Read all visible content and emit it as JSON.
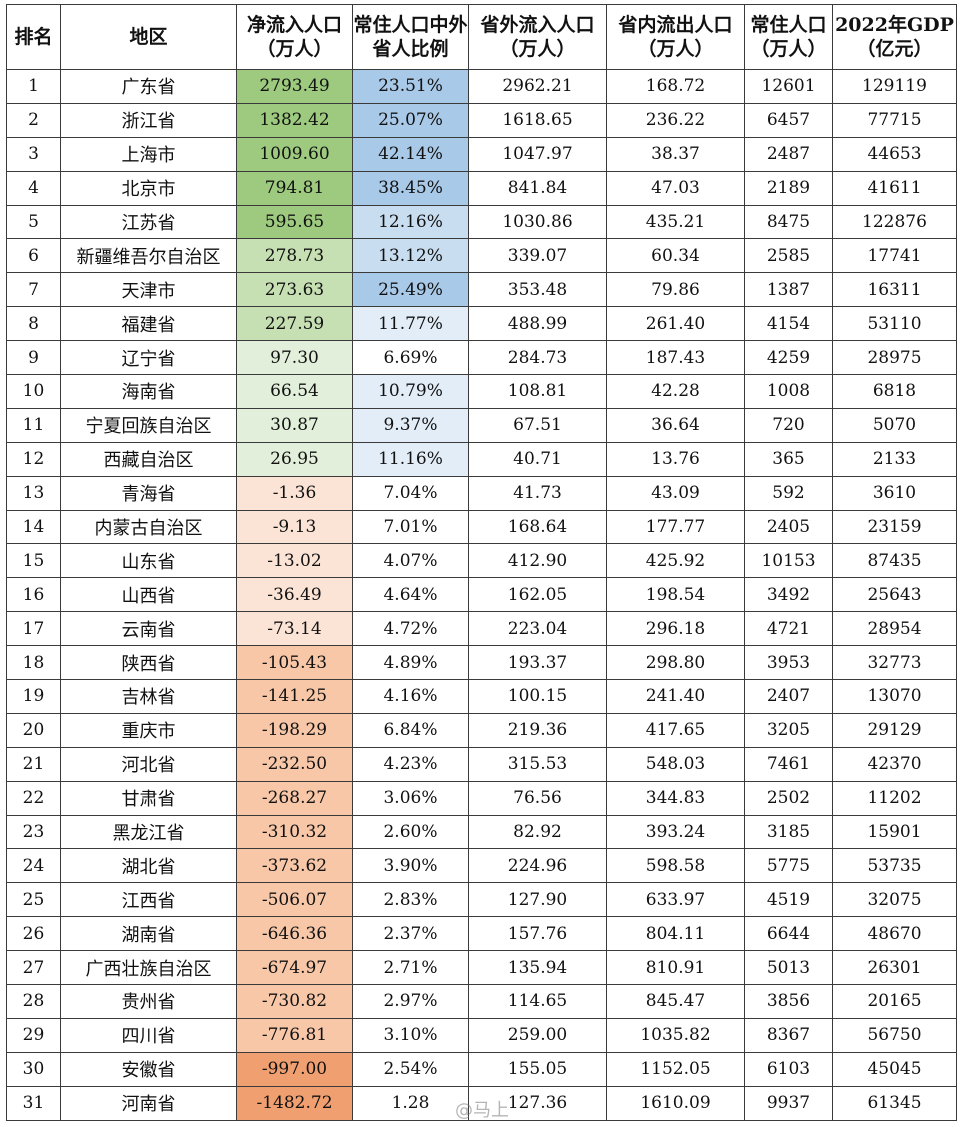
{
  "headers": {
    "rank": "排名",
    "region": "地区",
    "net_inflow": "净流入人口（万人）",
    "outside_ratio": "常住人口中外省人比例",
    "inflow_outside": "省外流入人口（万人）",
    "outflow_inside": "省内流出人口（万人）",
    "resident": "常住人口（万人）",
    "gdp": "2022年GDP（亿元）"
  },
  "colors": {
    "net_positive_strong": "#9dca7e",
    "net_positive_mid": "#c6e0b4",
    "net_positive_light": "#e2efda",
    "net_negative_light": "#fbe4d6",
    "net_negative_mid": "#f7c7a8",
    "net_negative_strong": "#f0a070",
    "ratio_strong": "#a9c9e8",
    "ratio_mid": "#c9ddf0",
    "ratio_light": "#e3edf8"
  },
  "rows": [
    {
      "rank": "1",
      "region": "广东省",
      "net": "2793.49",
      "ratio": "23.51%",
      "inflow": "2962.21",
      "outflow": "168.72",
      "resident": "12601",
      "gdp": "129119"
    },
    {
      "rank": "2",
      "region": "浙江省",
      "net": "1382.42",
      "ratio": "25.07%",
      "inflow": "1618.65",
      "outflow": "236.22",
      "resident": "6457",
      "gdp": "77715"
    },
    {
      "rank": "3",
      "region": "上海市",
      "net": "1009.60",
      "ratio": "42.14%",
      "inflow": "1047.97",
      "outflow": "38.37",
      "resident": "2487",
      "gdp": "44653"
    },
    {
      "rank": "4",
      "region": "北京市",
      "net": "794.81",
      "ratio": "38.45%",
      "inflow": "841.84",
      "outflow": "47.03",
      "resident": "2189",
      "gdp": "41611"
    },
    {
      "rank": "5",
      "region": "江苏省",
      "net": "595.65",
      "ratio": "12.16%",
      "inflow": "1030.86",
      "outflow": "435.21",
      "resident": "8475",
      "gdp": "122876"
    },
    {
      "rank": "6",
      "region": "新疆维吾尔自治区",
      "net": "278.73",
      "ratio": "13.12%",
      "inflow": "339.07",
      "outflow": "60.34",
      "resident": "2585",
      "gdp": "17741"
    },
    {
      "rank": "7",
      "region": "天津市",
      "net": "273.63",
      "ratio": "25.49%",
      "inflow": "353.48",
      "outflow": "79.86",
      "resident": "1387",
      "gdp": "16311"
    },
    {
      "rank": "8",
      "region": "福建省",
      "net": "227.59",
      "ratio": "11.77%",
      "inflow": "488.99",
      "outflow": "261.40",
      "resident": "4154",
      "gdp": "53110"
    },
    {
      "rank": "9",
      "region": "辽宁省",
      "net": "97.30",
      "ratio": "6.69%",
      "inflow": "284.73",
      "outflow": "187.43",
      "resident": "4259",
      "gdp": "28975"
    },
    {
      "rank": "10",
      "region": "海南省",
      "net": "66.54",
      "ratio": "10.79%",
      "inflow": "108.81",
      "outflow": "42.28",
      "resident": "1008",
      "gdp": "6818"
    },
    {
      "rank": "11",
      "region": "宁夏回族自治区",
      "net": "30.87",
      "ratio": "9.37%",
      "inflow": "67.51",
      "outflow": "36.64",
      "resident": "720",
      "gdp": "5070"
    },
    {
      "rank": "12",
      "region": "西藏自治区",
      "net": "26.95",
      "ratio": "11.16%",
      "inflow": "40.71",
      "outflow": "13.76",
      "resident": "365",
      "gdp": "2133"
    },
    {
      "rank": "13",
      "region": "青海省",
      "net": "-1.36",
      "ratio": "7.04%",
      "inflow": "41.73",
      "outflow": "43.09",
      "resident": "592",
      "gdp": "3610"
    },
    {
      "rank": "14",
      "region": "内蒙古自治区",
      "net": "-9.13",
      "ratio": "7.01%",
      "inflow": "168.64",
      "outflow": "177.77",
      "resident": "2405",
      "gdp": "23159"
    },
    {
      "rank": "15",
      "region": "山东省",
      "net": "-13.02",
      "ratio": "4.07%",
      "inflow": "412.90",
      "outflow": "425.92",
      "resident": "10153",
      "gdp": "87435"
    },
    {
      "rank": "16",
      "region": "山西省",
      "net": "-36.49",
      "ratio": "4.64%",
      "inflow": "162.05",
      "outflow": "198.54",
      "resident": "3492",
      "gdp": "25643"
    },
    {
      "rank": "17",
      "region": "云南省",
      "net": "-73.14",
      "ratio": "4.72%",
      "inflow": "223.04",
      "outflow": "296.18",
      "resident": "4721",
      "gdp": "28954"
    },
    {
      "rank": "18",
      "region": "陕西省",
      "net": "-105.43",
      "ratio": "4.89%",
      "inflow": "193.37",
      "outflow": "298.80",
      "resident": "3953",
      "gdp": "32773"
    },
    {
      "rank": "19",
      "region": "吉林省",
      "net": "-141.25",
      "ratio": "4.16%",
      "inflow": "100.15",
      "outflow": "241.40",
      "resident": "2407",
      "gdp": "13070"
    },
    {
      "rank": "20",
      "region": "重庆市",
      "net": "-198.29",
      "ratio": "6.84%",
      "inflow": "219.36",
      "outflow": "417.65",
      "resident": "3205",
      "gdp": "29129"
    },
    {
      "rank": "21",
      "region": "河北省",
      "net": "-232.50",
      "ratio": "4.23%",
      "inflow": "315.53",
      "outflow": "548.03",
      "resident": "7461",
      "gdp": "42370"
    },
    {
      "rank": "22",
      "region": "甘肃省",
      "net": "-268.27",
      "ratio": "3.06%",
      "inflow": "76.56",
      "outflow": "344.83",
      "resident": "2502",
      "gdp": "11202"
    },
    {
      "rank": "23",
      "region": "黑龙江省",
      "net": "-310.32",
      "ratio": "2.60%",
      "inflow": "82.92",
      "outflow": "393.24",
      "resident": "3185",
      "gdp": "15901"
    },
    {
      "rank": "24",
      "region": "湖北省",
      "net": "-373.62",
      "ratio": "3.90%",
      "inflow": "224.96",
      "outflow": "598.58",
      "resident": "5775",
      "gdp": "53735"
    },
    {
      "rank": "25",
      "region": "江西省",
      "net": "-506.07",
      "ratio": "2.83%",
      "inflow": "127.90",
      "outflow": "633.97",
      "resident": "4519",
      "gdp": "32075"
    },
    {
      "rank": "26",
      "region": "湖南省",
      "net": "-646.36",
      "ratio": "2.37%",
      "inflow": "157.76",
      "outflow": "804.11",
      "resident": "6644",
      "gdp": "48670"
    },
    {
      "rank": "27",
      "region": "广西壮族自治区",
      "net": "-674.97",
      "ratio": "2.71%",
      "inflow": "135.94",
      "outflow": "810.91",
      "resident": "5013",
      "gdp": "26301"
    },
    {
      "rank": "28",
      "region": "贵州省",
      "net": "-730.82",
      "ratio": "2.97%",
      "inflow": "114.65",
      "outflow": "845.47",
      "resident": "3856",
      "gdp": "20165"
    },
    {
      "rank": "29",
      "region": "四川省",
      "net": "-776.81",
      "ratio": "3.10%",
      "inflow": "259.00",
      "outflow": "1035.82",
      "resident": "8367",
      "gdp": "56750"
    },
    {
      "rank": "30",
      "region": "安徽省",
      "net": "-997.00",
      "ratio": "2.54%",
      "inflow": "155.05",
      "outflow": "1152.05",
      "resident": "6103",
      "gdp": "45045"
    },
    {
      "rank": "31",
      "region": "河南省",
      "net": "-1482.72",
      "ratio": "1.28",
      "inflow": "127.36",
      "outflow": "1610.09",
      "resident": "9937",
      "gdp": "61345"
    }
  ],
  "watermark": "@马上"
}
